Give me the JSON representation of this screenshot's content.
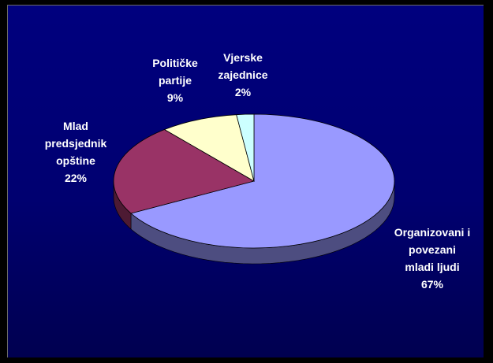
{
  "chart_data": {
    "type": "pie",
    "three_d": true,
    "slices": [
      {
        "label_lines": [
          "Organizovani i",
          "povezani",
          "mladi ljudi",
          "67%"
        ],
        "value": 67,
        "color": "#9999ff"
      },
      {
        "label_lines": [
          "Mlad",
          "predsjednik",
          "opštine",
          "22%"
        ],
        "value": 22,
        "color": "#993366"
      },
      {
        "label_lines": [
          "Političke",
          "partije",
          "9%"
        ],
        "value": 9,
        "color": "#ffffcc"
      },
      {
        "label_lines": [
          "Vjerske",
          "zajednice",
          "2%"
        ],
        "value": 2,
        "color": "#ccffff"
      }
    ]
  }
}
